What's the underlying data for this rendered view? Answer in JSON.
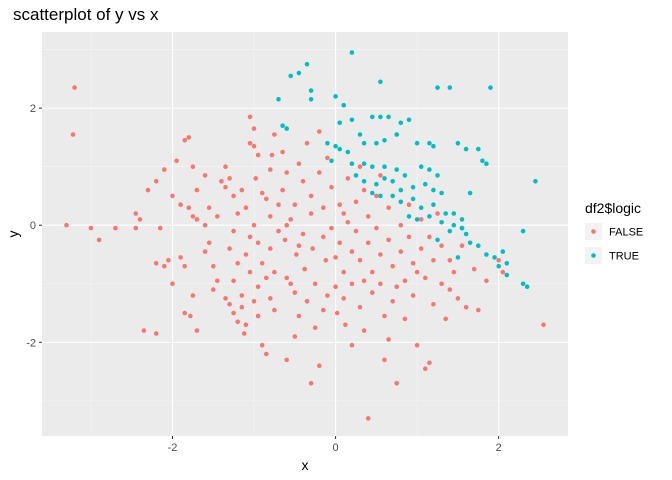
{
  "chart_data": {
    "type": "scatter",
    "title": "scatterplot of y vs x",
    "xlabel": "x",
    "ylabel": "y",
    "xlim": [
      -3.6,
      2.85
    ],
    "ylim": [
      -3.6,
      3.3
    ],
    "x_ticks": [
      -2,
      0,
      2
    ],
    "y_ticks": [
      -2,
      0,
      2
    ],
    "x_tick_labels": [
      "-2",
      "0",
      "2"
    ],
    "y_tick_labels": [
      "-2",
      "0",
      "2"
    ],
    "grid": true,
    "legend_position": "right",
    "legend_title": "df2$logic",
    "series": [
      {
        "name": "FALSE",
        "color": "#F8766D",
        "points": [
          [
            -3.2,
            2.35
          ],
          [
            -3.22,
            1.55
          ],
          [
            -3.3,
            0.0
          ],
          [
            -3.0,
            -0.05
          ],
          [
            -2.9,
            -0.25
          ],
          [
            -2.7,
            -0.05
          ],
          [
            -2.45,
            0.2
          ],
          [
            -2.4,
            0.1
          ],
          [
            -2.45,
            -0.05
          ],
          [
            -2.3,
            0.6
          ],
          [
            -2.2,
            0.75
          ],
          [
            -2.1,
            0.95
          ],
          [
            -2.35,
            -1.8
          ],
          [
            -2.2,
            -1.85
          ],
          [
            -2.15,
            -0.05
          ],
          [
            -2.2,
            -0.65
          ],
          [
            -2.1,
            -0.7
          ],
          [
            -2.05,
            -0.6
          ],
          [
            -2.0,
            0.5
          ],
          [
            -1.9,
            0.35
          ],
          [
            -1.95,
            1.1
          ],
          [
            -1.85,
            1.45
          ],
          [
            -1.8,
            1.5
          ],
          [
            -1.75,
            1.0
          ],
          [
            -1.7,
            0.6
          ],
          [
            -1.8,
            0.3
          ],
          [
            -1.75,
            0.15
          ],
          [
            -1.7,
            0.1
          ],
          [
            -1.9,
            -0.55
          ],
          [
            -1.85,
            -0.7
          ],
          [
            -1.75,
            -1.2
          ],
          [
            -1.85,
            -1.5
          ],
          [
            -1.78,
            -1.55
          ],
          [
            -1.7,
            -1.8
          ],
          [
            -1.6,
            0.85
          ],
          [
            -1.55,
            0.3
          ],
          [
            -1.6,
            0.0
          ],
          [
            -1.55,
            -0.3
          ],
          [
            -1.5,
            -0.7
          ],
          [
            -1.45,
            -0.95
          ],
          [
            -1.5,
            -1.1
          ],
          [
            -1.4,
            0.75
          ],
          [
            -1.35,
            0.65
          ],
          [
            -1.3,
            0.8
          ],
          [
            -1.25,
            0.5
          ],
          [
            -1.35,
            1.0
          ],
          [
            -1.2,
            0.2
          ],
          [
            -1.25,
            -0.1
          ],
          [
            -1.3,
            -0.4
          ],
          [
            -1.2,
            -0.65
          ],
          [
            -1.35,
            -1.25
          ],
          [
            -1.3,
            -1.35
          ],
          [
            -1.25,
            -1.5
          ],
          [
            -1.15,
            -1.2
          ],
          [
            -1.15,
            0.6
          ],
          [
            -1.1,
            0.3
          ],
          [
            -1.05,
            -0.2
          ],
          [
            -1.1,
            -0.5
          ],
          [
            -1.05,
            -0.8
          ],
          [
            -1.2,
            -1.65
          ],
          [
            -1.1,
            -1.7
          ],
          [
            -1.12,
            -1.85
          ],
          [
            -1.15,
            -1.4
          ],
          [
            -1.05,
            1.4
          ],
          [
            -1.0,
            1.35
          ],
          [
            -1.05,
            1.85
          ],
          [
            -1.0,
            1.65
          ],
          [
            -0.95,
            1.2
          ],
          [
            -0.98,
            0.8
          ],
          [
            -1.0,
            0.0
          ],
          [
            -0.95,
            -0.3
          ],
          [
            -0.9,
            -0.65
          ],
          [
            -0.95,
            -1.05
          ],
          [
            -1.0,
            -1.3
          ],
          [
            -0.95,
            -1.55
          ],
          [
            -0.9,
            -2.05
          ],
          [
            -0.85,
            -2.2
          ],
          [
            -0.8,
            0.15
          ],
          [
            -0.85,
            0.45
          ],
          [
            -0.8,
            0.95
          ],
          [
            -0.75,
            1.55
          ],
          [
            -0.78,
            1.2
          ],
          [
            -0.8,
            -0.4
          ],
          [
            -0.75,
            -0.8
          ],
          [
            -0.8,
            -1.25
          ],
          [
            -0.75,
            -1.45
          ],
          [
            -0.7,
            -0.1
          ],
          [
            -0.65,
            0.6
          ],
          [
            -0.6,
            0.9
          ],
          [
            -0.65,
            1.25
          ],
          [
            -0.62,
            -0.25
          ],
          [
            -0.6,
            -0.9
          ],
          [
            -0.55,
            -1.0
          ],
          [
            -0.6,
            -2.3
          ],
          [
            -0.55,
            0.1
          ],
          [
            -0.5,
            0.35
          ],
          [
            -0.48,
            -0.5
          ],
          [
            -0.5,
            -1.15
          ],
          [
            -0.45,
            -1.55
          ],
          [
            -0.45,
            1.05
          ],
          [
            -0.4,
            0.75
          ],
          [
            -0.4,
            -0.15
          ],
          [
            -0.38,
            -0.75
          ],
          [
            -0.35,
            -1.3
          ],
          [
            -0.35,
            1.4
          ],
          [
            -0.3,
            0.5
          ],
          [
            -0.3,
            0.2
          ],
          [
            -0.28,
            -0.4
          ],
          [
            -0.25,
            -1.0
          ],
          [
            -0.25,
            -1.75
          ],
          [
            -0.2,
            -2.4
          ],
          [
            -0.2,
            0.9
          ],
          [
            -0.15,
            0.3
          ],
          [
            -0.15,
            -0.2
          ],
          [
            -0.12,
            -0.6
          ],
          [
            -0.1,
            -1.2
          ],
          [
            -0.1,
            1.15
          ],
          [
            -0.05,
            0.65
          ],
          [
            -0.05,
            -0.05
          ],
          [
            0.0,
            -0.55
          ],
          [
            0.0,
            -1.05
          ],
          [
            0.02,
            -1.5
          ],
          [
            0.05,
            0.35
          ],
          [
            0.05,
            -0.3
          ],
          [
            0.1,
            -0.8
          ],
          [
            0.1,
            -1.25
          ],
          [
            0.12,
            -1.7
          ],
          [
            0.15,
            0.8
          ],
          [
            0.15,
            0.05
          ],
          [
            0.2,
            -0.45
          ],
          [
            0.2,
            -1.0
          ],
          [
            0.25,
            0.4
          ],
          [
            0.25,
            -0.1
          ],
          [
            0.3,
            -0.6
          ],
          [
            0.3,
            -1.4
          ],
          [
            0.35,
            -1.8
          ],
          [
            0.35,
            0.6
          ],
          [
            0.4,
            0.15
          ],
          [
            0.4,
            -0.3
          ],
          [
            0.45,
            -0.8
          ],
          [
            0.45,
            -1.15
          ],
          [
            0.4,
            -3.3
          ],
          [
            0.5,
            0.5
          ],
          [
            0.5,
            -0.05
          ],
          [
            0.55,
            -0.5
          ],
          [
            0.55,
            -1.0
          ],
          [
            0.6,
            -1.55
          ],
          [
            0.6,
            -2.3
          ],
          [
            0.65,
            0.3
          ],
          [
            0.65,
            -0.25
          ],
          [
            0.7,
            -0.7
          ],
          [
            0.7,
            -1.3
          ],
          [
            0.75,
            -2.7
          ],
          [
            0.8,
            0.0
          ],
          [
            0.8,
            -0.45
          ],
          [
            0.85,
            -0.95
          ],
          [
            0.85,
            -1.6
          ],
          [
            0.9,
            0.35
          ],
          [
            0.9,
            -0.2
          ],
          [
            0.95,
            -0.65
          ],
          [
            0.95,
            -1.2
          ],
          [
            1.0,
            -2.05
          ],
          [
            1.05,
            0.1
          ],
          [
            1.05,
            -0.4
          ],
          [
            1.1,
            -0.9
          ],
          [
            1.1,
            -2.45
          ],
          [
            1.15,
            -2.35
          ],
          [
            1.15,
            -0.2
          ],
          [
            1.2,
            -0.6
          ],
          [
            1.2,
            -1.35
          ],
          [
            1.25,
            0.2
          ],
          [
            1.3,
            -0.35
          ],
          [
            1.3,
            -1.0
          ],
          [
            1.35,
            -1.6
          ],
          [
            1.4,
            -0.6
          ],
          [
            1.45,
            -0.8
          ],
          [
            1.5,
            -1.25
          ],
          [
            1.55,
            -0.35
          ],
          [
            1.6,
            -1.4
          ],
          [
            1.7,
            -0.75
          ],
          [
            1.75,
            -1.45
          ],
          [
            1.85,
            -0.95
          ],
          [
            2.0,
            -0.6
          ],
          [
            2.05,
            -0.8
          ],
          [
            2.55,
            -1.7
          ],
          [
            -0.3,
            -2.7
          ],
          [
            0.2,
            -2.05
          ],
          [
            -0.5,
            -1.9
          ],
          [
            1.4,
            -1.1
          ],
          [
            -0.7,
            0.35
          ],
          [
            -1.45,
            0.15
          ],
          [
            -1.6,
            -0.45
          ],
          [
            -0.15,
            -1.45
          ],
          [
            0.65,
            -1.95
          ],
          [
            -0.9,
            0.55
          ],
          [
            0.3,
            1.0
          ],
          [
            0.55,
            0.85
          ],
          [
            -0.2,
            1.6
          ],
          [
            -0.6,
            0.0
          ],
          [
            -1.25,
            -0.95
          ],
          [
            0.75,
            -1.05
          ],
          [
            -0.45,
            -0.35
          ],
          [
            0.1,
            0.2
          ],
          [
            1.0,
            -0.8
          ],
          [
            -2.0,
            -1.0
          ],
          [
            -0.85,
            -0.9
          ],
          [
            0.35,
            -0.95
          ]
        ]
      },
      {
        "name": "TRUE",
        "color": "#00BFC4",
        "points": [
          [
            0.2,
            2.95
          ],
          [
            0.55,
            2.45
          ],
          [
            -0.35,
            2.75
          ],
          [
            -0.45,
            2.6
          ],
          [
            -0.55,
            2.55
          ],
          [
            -0.3,
            2.3
          ],
          [
            -0.7,
            2.15
          ],
          [
            -0.3,
            2.15
          ],
          [
            0.0,
            2.2
          ],
          [
            0.1,
            2.05
          ],
          [
            0.05,
            1.75
          ],
          [
            0.2,
            1.8
          ],
          [
            -0.65,
            1.7
          ],
          [
            -0.6,
            1.65
          ],
          [
            0.45,
            1.85
          ],
          [
            0.55,
            1.85
          ],
          [
            0.65,
            1.85
          ],
          [
            0.8,
            1.75
          ],
          [
            0.9,
            1.8
          ],
          [
            1.25,
            2.35
          ],
          [
            1.4,
            2.35
          ],
          [
            1.9,
            2.35
          ],
          [
            -0.1,
            1.4
          ],
          [
            0.0,
            1.35
          ],
          [
            0.05,
            1.3
          ],
          [
            0.15,
            1.25
          ],
          [
            0.3,
            1.55
          ],
          [
            0.35,
            1.4
          ],
          [
            0.5,
            1.4
          ],
          [
            0.6,
            1.45
          ],
          [
            0.75,
            1.55
          ],
          [
            1.0,
            1.4
          ],
          [
            1.15,
            1.4
          ],
          [
            1.2,
            1.35
          ],
          [
            1.5,
            1.4
          ],
          [
            1.6,
            1.3
          ],
          [
            1.75,
            1.3
          ],
          [
            1.8,
            1.1
          ],
          [
            1.85,
            1.05
          ],
          [
            -0.05,
            1.1
          ],
          [
            0.2,
            1.05
          ],
          [
            0.35,
            1.05
          ],
          [
            0.45,
            1.0
          ],
          [
            0.6,
            1.0
          ],
          [
            0.75,
            0.95
          ],
          [
            0.85,
            0.85
          ],
          [
            1.05,
            1.0
          ],
          [
            1.15,
            0.95
          ],
          [
            1.25,
            0.85
          ],
          [
            0.25,
            0.85
          ],
          [
            0.35,
            0.75
          ],
          [
            0.5,
            0.7
          ],
          [
            0.6,
            0.8
          ],
          [
            0.7,
            0.75
          ],
          [
            0.8,
            0.6
          ],
          [
            0.95,
            0.65
          ],
          [
            1.1,
            0.7
          ],
          [
            1.2,
            0.6
          ],
          [
            1.3,
            0.55
          ],
          [
            1.65,
            0.55
          ],
          [
            0.45,
            0.55
          ],
          [
            0.55,
            0.5
          ],
          [
            0.7,
            0.5
          ],
          [
            0.8,
            0.4
          ],
          [
            0.95,
            0.45
          ],
          [
            1.05,
            0.3
          ],
          [
            1.2,
            0.35
          ],
          [
            1.35,
            0.2
          ],
          [
            1.45,
            0.2
          ],
          [
            1.55,
            0.1
          ],
          [
            0.9,
            0.15
          ],
          [
            1.0,
            0.1
          ],
          [
            1.15,
            0.15
          ],
          [
            1.3,
            0.05
          ],
          [
            1.45,
            0.0
          ],
          [
            1.55,
            -0.05
          ],
          [
            1.6,
            -0.15
          ],
          [
            1.4,
            -0.1
          ],
          [
            1.65,
            -0.3
          ],
          [
            1.75,
            -0.35
          ],
          [
            1.85,
            -0.5
          ],
          [
            1.95,
            -0.55
          ],
          [
            2.05,
            -0.45
          ],
          [
            2.1,
            -0.65
          ],
          [
            2.0,
            -0.7
          ],
          [
            2.1,
            -0.85
          ],
          [
            2.3,
            -0.1
          ],
          [
            2.3,
            -1.0
          ],
          [
            2.35,
            -1.05
          ],
          [
            2.45,
            0.75
          ],
          [
            1.55,
            -0.05
          ],
          [
            1.25,
            -0.25
          ],
          [
            1.5,
            -0.55
          ]
        ]
      }
    ]
  }
}
